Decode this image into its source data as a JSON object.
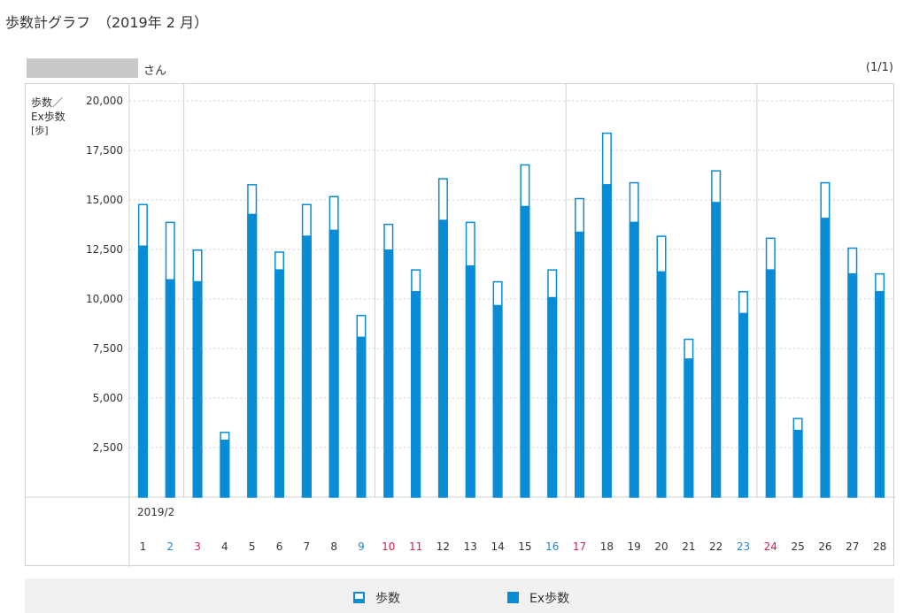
{
  "page": {
    "title": "歩数計グラフ　（2019年 2 月）"
  },
  "user": {
    "suffix": "さん",
    "pager": "(1/1)"
  },
  "y_axis": {
    "label_line1": "歩数／",
    "label_line2": "Ex歩数",
    "unit": "[歩]"
  },
  "x_axis": {
    "month_label": "2019/2"
  },
  "legend": {
    "steps": "歩数",
    "ex_steps": "Ex歩数"
  },
  "colors": {
    "bar": "#0a8bd6",
    "weekday": "#333333",
    "saturday": "#1a8ad4",
    "sunday_holiday": "#d0234d",
    "grid": "#cccccc"
  },
  "chart_data": {
    "type": "bar",
    "title": "歩数計グラフ",
    "ylabel": "歩数／Ex歩数 [歩]",
    "ylim": [
      0,
      20000
    ],
    "yticks": [
      "2,500",
      "5,000",
      "7,500",
      "10,000",
      "12,500",
      "15,000",
      "17,500",
      "20,000"
    ],
    "ytick_values": [
      2500,
      5000,
      7500,
      10000,
      12500,
      15000,
      17500,
      20000
    ],
    "categories": [
      "1",
      "2",
      "3",
      "4",
      "5",
      "6",
      "7",
      "8",
      "9",
      "10",
      "11",
      "12",
      "13",
      "14",
      "15",
      "16",
      "17",
      "18",
      "19",
      "20",
      "21",
      "22",
      "23",
      "24",
      "25",
      "26",
      "27",
      "28"
    ],
    "day_types": [
      "weekday",
      "saturday",
      "sunday",
      "weekday",
      "weekday",
      "weekday",
      "weekday",
      "weekday",
      "saturday",
      "sunday",
      "holiday",
      "weekday",
      "weekday",
      "weekday",
      "weekday",
      "saturday",
      "sunday",
      "weekday",
      "weekday",
      "weekday",
      "weekday",
      "weekday",
      "saturday",
      "sunday",
      "weekday",
      "weekday",
      "weekday",
      "weekday"
    ],
    "series": [
      {
        "name": "歩数",
        "values": [
          14800,
          13900,
          12500,
          3300,
          15800,
          12400,
          14800,
          15200,
          9200,
          13800,
          11500,
          16100,
          13900,
          10900,
          16800,
          11500,
          15100,
          18400,
          15900,
          13200,
          8000,
          16500,
          10400,
          13100,
          4000,
          15900,
          12600,
          11300
        ]
      },
      {
        "name": "Ex歩数",
        "values": [
          12700,
          11000,
          10900,
          2900,
          14300,
          11500,
          13200,
          13500,
          8100,
          12500,
          10400,
          14000,
          11700,
          9700,
          14700,
          10100,
          13400,
          15800,
          13900,
          11400,
          7000,
          14900,
          9300,
          11500,
          3400,
          14100,
          11300,
          10400
        ]
      }
    ]
  }
}
